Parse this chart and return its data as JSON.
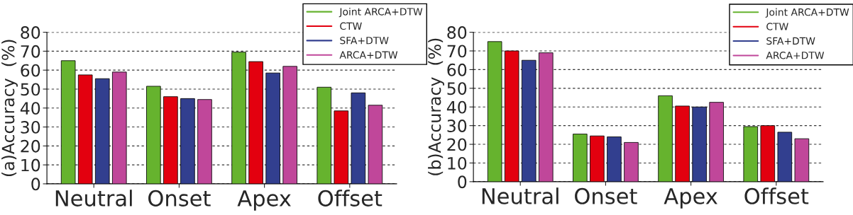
{
  "chart_data": [
    {
      "type": "bar",
      "ylabel": "(a)Accuracy  (%)",
      "categories": [
        "Neutral",
        "Onset",
        "Apex",
        "Offset"
      ],
      "series": [
        {
          "name": "Joint ARCA+DTW",
          "color": "#66b32e",
          "values": [
            65,
            51.5,
            69.5,
            51
          ]
        },
        {
          "name": "CTW",
          "color": "#e3000f",
          "values": [
            57.5,
            46,
            64.5,
            38.5
          ]
        },
        {
          "name": "SFA+DTW",
          "color": "#323f8f",
          "values": [
            55.5,
            45,
            58.5,
            48
          ]
        },
        {
          "name": "ARCA+DTW",
          "color": "#c0479a",
          "values": [
            59,
            44.5,
            62,
            41.5
          ]
        }
      ],
      "ylim": [
        0,
        80
      ],
      "yticks": [
        0,
        10,
        20,
        30,
        40,
        50,
        60,
        70,
        80
      ],
      "grid": "y",
      "legend": "top right"
    },
    {
      "type": "bar",
      "ylabel": "(b)Accuracy  (%)",
      "categories": [
        "Neutral",
        "Onset",
        "Apex",
        "Offset"
      ],
      "series": [
        {
          "name": "Joint ARCA+DTW",
          "color": "#66b32e",
          "values": [
            75,
            25.5,
            46,
            29.5
          ]
        },
        {
          "name": "CTW",
          "color": "#e3000f",
          "values": [
            70,
            24.5,
            40.5,
            30
          ]
        },
        {
          "name": "SFA+DTW",
          "color": "#323f8f",
          "values": [
            65,
            24,
            40,
            26.5
          ]
        },
        {
          "name": "ARCA+DTW",
          "color": "#c0479a",
          "values": [
            69,
            21,
            42.5,
            23
          ]
        }
      ],
      "ylim": [
        0,
        80
      ],
      "yticks": [
        0,
        10,
        20,
        30,
        40,
        50,
        60,
        70,
        80
      ],
      "grid": "y",
      "legend": "top right"
    }
  ]
}
